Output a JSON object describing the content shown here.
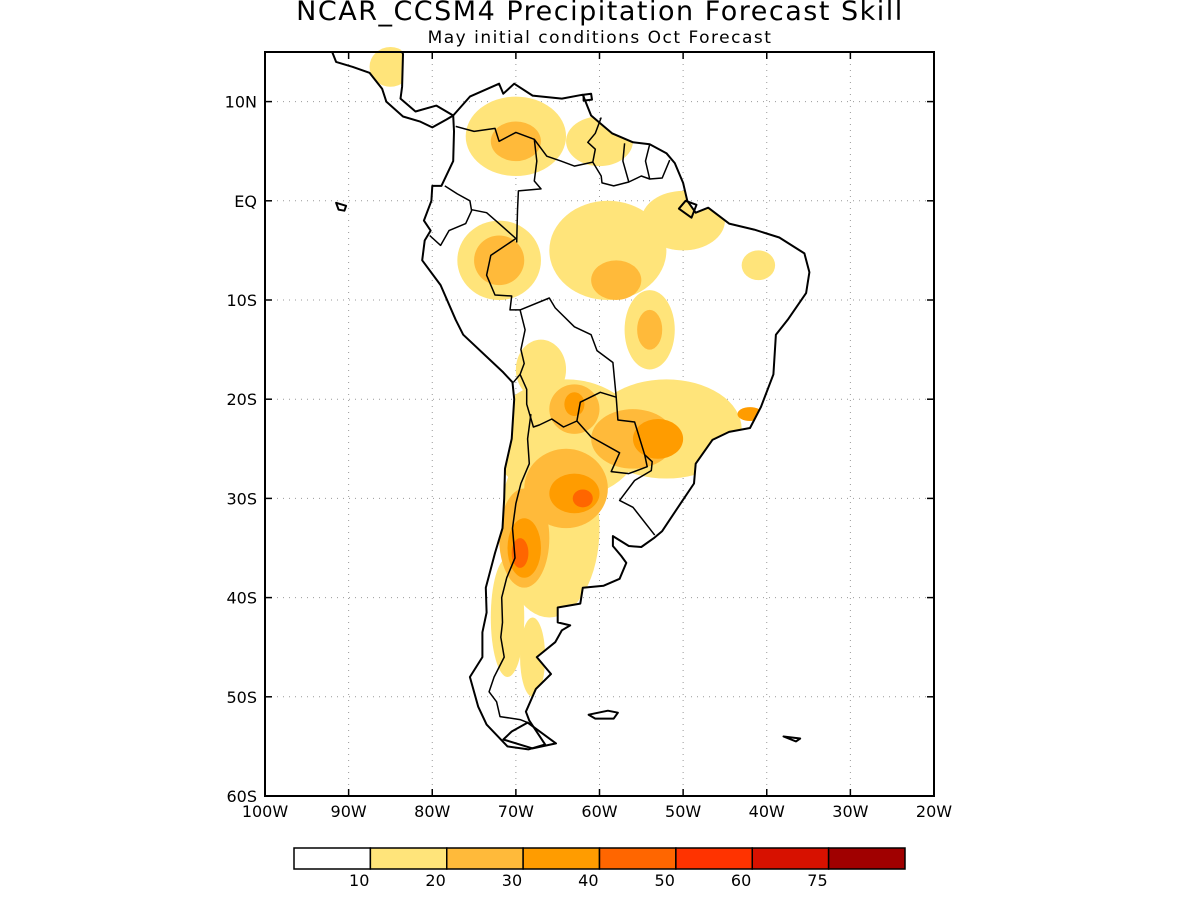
{
  "title": "NCAR_CCSM4 Precipitation Forecast Skill",
  "subtitle": "May initial conditions  Oct Forecast",
  "map": {
    "lon_range": [
      -100,
      -20
    ],
    "lat_range": [
      -60,
      15
    ],
    "grid": true,
    "lat_ticks": [
      {
        "value": 10,
        "label": "10N"
      },
      {
        "value": 0,
        "label": "EQ"
      },
      {
        "value": -10,
        "label": "10S"
      },
      {
        "value": -20,
        "label": "20S"
      },
      {
        "value": -30,
        "label": "30S"
      },
      {
        "value": -40,
        "label": "40S"
      },
      {
        "value": -50,
        "label": "50S"
      },
      {
        "value": -60,
        "label": "60S"
      }
    ],
    "lon_ticks": [
      {
        "value": -100,
        "label": "100W"
      },
      {
        "value": -90,
        "label": "90W"
      },
      {
        "value": -80,
        "label": "80W"
      },
      {
        "value": -70,
        "label": "70W"
      },
      {
        "value": -60,
        "label": "60W"
      },
      {
        "value": -50,
        "label": "50W"
      },
      {
        "value": -40,
        "label": "40W"
      },
      {
        "value": -30,
        "label": "30W"
      },
      {
        "value": -20,
        "label": "20W"
      }
    ]
  },
  "colorbar": {
    "colors": [
      "#ffffff",
      "#ffe47a",
      "#ffba3a",
      "#ff9c00",
      "#ff6600",
      "#ff3300",
      "#d71100",
      "#a00000"
    ],
    "labels": [
      "10",
      "20",
      "30",
      "40",
      "50",
      "60",
      "75"
    ]
  },
  "skill_regions": [
    {
      "level": 1,
      "lon": -64,
      "lat": -24,
      "rx": 9,
      "ry": 6
    },
    {
      "level": 1,
      "lon": -52,
      "lat": -23,
      "rx": 9,
      "ry": 5
    },
    {
      "level": 1,
      "lon": -66,
      "lat": -33,
      "rx": 6,
      "ry": 9
    },
    {
      "level": 1,
      "lon": -71,
      "lat": -42,
      "rx": 2,
      "ry": 6
    },
    {
      "level": 1,
      "lon": -68,
      "lat": -46,
      "rx": 1.5,
      "ry": 4
    },
    {
      "level": 1,
      "lon": -67,
      "lat": -17,
      "rx": 3,
      "ry": 3
    },
    {
      "level": 1,
      "lon": -70,
      "lat": 6.5,
      "rx": 6,
      "ry": 4
    },
    {
      "level": 1,
      "lon": -72,
      "lat": -6,
      "rx": 5,
      "ry": 4
    },
    {
      "level": 1,
      "lon": -59,
      "lat": -5,
      "rx": 7,
      "ry": 5
    },
    {
      "level": 1,
      "lon": -50,
      "lat": -2,
      "rx": 5,
      "ry": 3
    },
    {
      "level": 1,
      "lon": -54,
      "lat": -13,
      "rx": 3,
      "ry": 4
    },
    {
      "level": 1,
      "lon": -60,
      "lat": 6,
      "rx": 4,
      "ry": 2.5
    },
    {
      "level": 1,
      "lon": -85,
      "lat": 13.5,
      "rx": 2.5,
      "ry": 2
    },
    {
      "level": 1,
      "lon": -41,
      "lat": -6.5,
      "rx": 2,
      "ry": 1.5
    },
    {
      "level": 2,
      "lon": -70,
      "lat": 6,
      "rx": 3,
      "ry": 2
    },
    {
      "level": 2,
      "lon": -72,
      "lat": -6,
      "rx": 3,
      "ry": 2.5
    },
    {
      "level": 2,
      "lon": -63,
      "lat": -21,
      "rx": 3,
      "ry": 2.5
    },
    {
      "level": 2,
      "lon": -56,
      "lat": -24,
      "rx": 5,
      "ry": 3
    },
    {
      "level": 2,
      "lon": -64,
      "lat": -29,
      "rx": 5,
      "ry": 4
    },
    {
      "level": 2,
      "lon": -69,
      "lat": -34,
      "rx": 3,
      "ry": 5
    },
    {
      "level": 2,
      "lon": -58,
      "lat": -8,
      "rx": 3,
      "ry": 2
    },
    {
      "level": 2,
      "lon": -54,
      "lat": -13,
      "rx": 1.5,
      "ry": 2
    },
    {
      "level": 3,
      "lon": -63,
      "lat": -29.5,
      "rx": 3,
      "ry": 2
    },
    {
      "level": 3,
      "lon": -69,
      "lat": -35,
      "rx": 2,
      "ry": 3
    },
    {
      "level": 3,
      "lon": -53,
      "lat": -24,
      "rx": 3,
      "ry": 2
    },
    {
      "level": 3,
      "lon": -63,
      "lat": -20.5,
      "rx": 1.2,
      "ry": 1.2
    },
    {
      "level": 3,
      "lon": -42,
      "lat": -21.5,
      "rx": 1.5,
      "ry": 0.7
    },
    {
      "level": 4,
      "lon": -69.5,
      "lat": -35.5,
      "rx": 1,
      "ry": 1.5
    },
    {
      "level": 4,
      "lon": -62,
      "lat": -30,
      "rx": 1.2,
      "ry": 0.9
    }
  ]
}
